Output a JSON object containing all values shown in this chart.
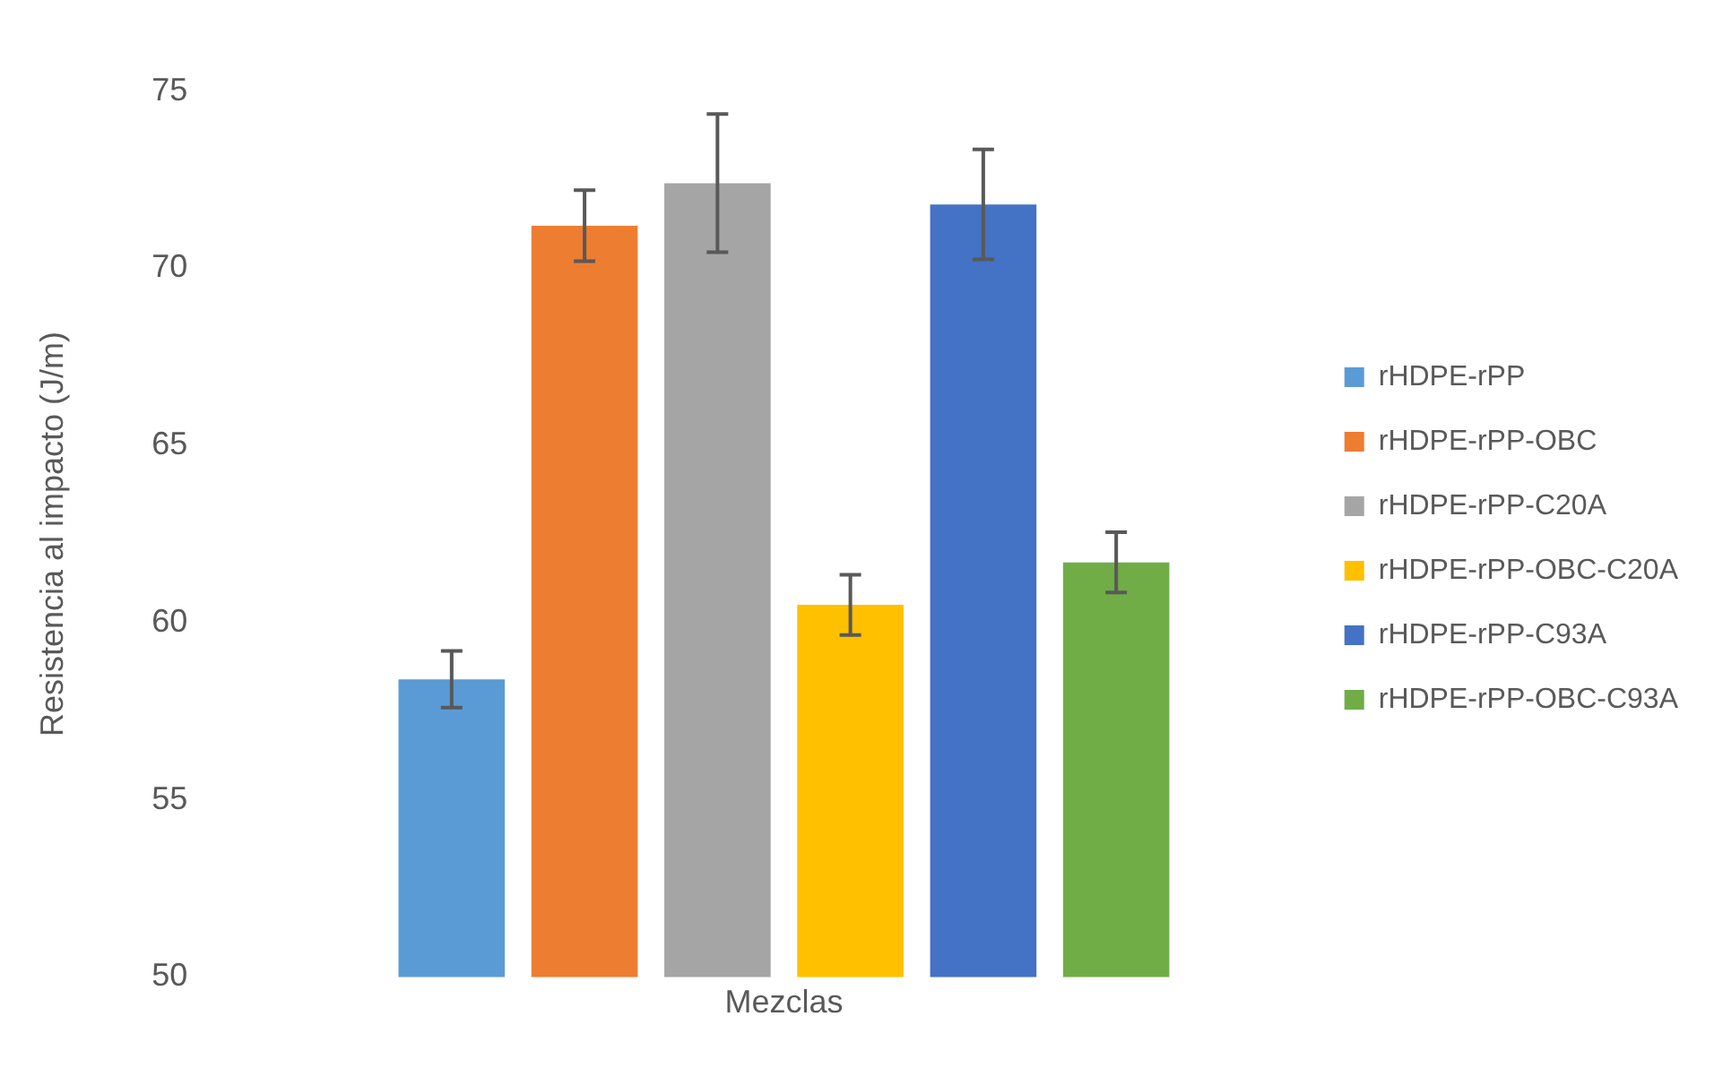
{
  "chart_data": {
    "type": "bar",
    "xlabel": "Mezclas",
    "ylabel": "Resistencia al impacto (J/m)",
    "categories": [
      null
    ],
    "series": [
      {
        "name": "rHDPE-rPP",
        "color": "#5b9bd5",
        "values": [
          58.4
        ],
        "errors": [
          0.8
        ]
      },
      {
        "name": "rHDPE-rPP-OBC",
        "color": "#ed7d31",
        "values": [
          71.2
        ],
        "errors": [
          1.0
        ]
      },
      {
        "name": "rHDPE-rPP-C20A",
        "color": "#a5a5a5",
        "values": [
          72.4
        ],
        "errors": [
          1.95
        ]
      },
      {
        "name": "rHDPE-rPP-OBC-C20A",
        "color": "#ffc000",
        "values": [
          60.5
        ],
        "errors": [
          0.85
        ]
      },
      {
        "name": "rHDPE-rPP-C93A",
        "color": "#4472c4",
        "values": [
          71.8
        ],
        "errors": [
          1.55
        ]
      },
      {
        "name": "rHDPE-rPP-OBC-C93A",
        "color": "#70ad47",
        "values": [
          61.7
        ],
        "errors": [
          0.85
        ]
      }
    ],
    "ylim": [
      50,
      75
    ],
    "yticks": [
      50,
      55,
      60,
      65,
      70,
      75
    ],
    "grid": false,
    "legend": "right"
  }
}
